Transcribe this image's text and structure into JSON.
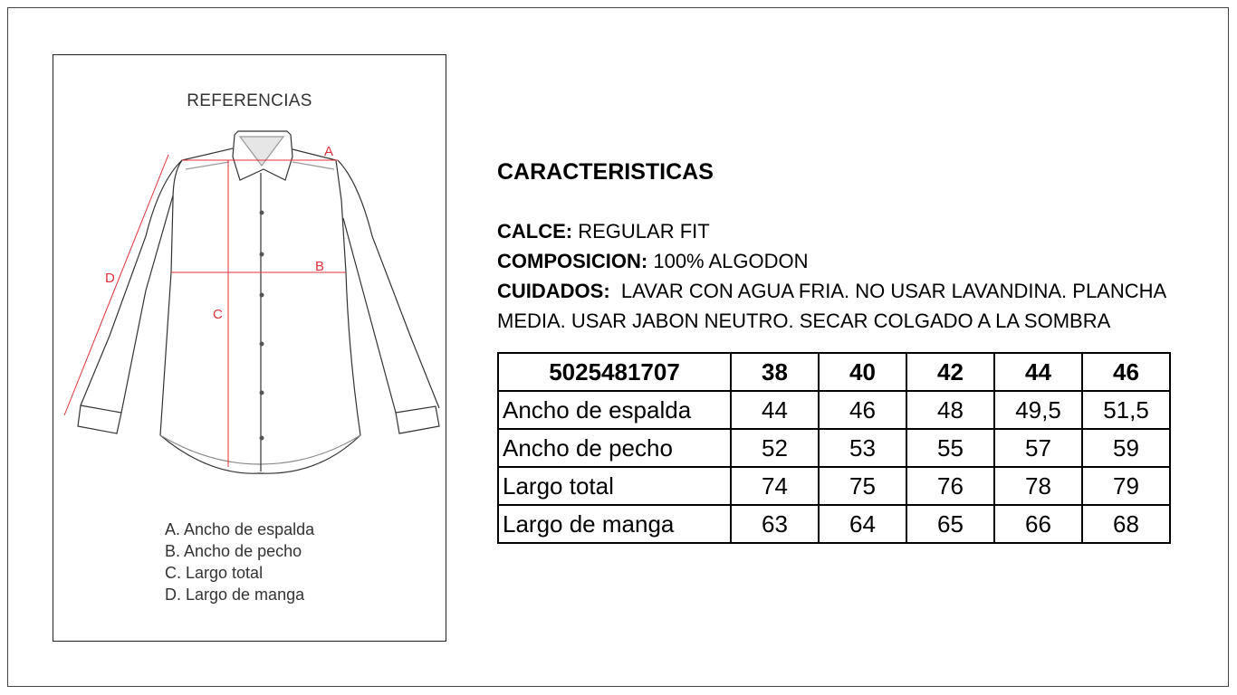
{
  "reference_panel": {
    "title": "REFERENCIAS",
    "markers": {
      "a": "A",
      "b": "B",
      "c": "C",
      "d": "D"
    },
    "legend": [
      "A. Ancho de espalda",
      "B. Ancho de pecho",
      "C. Largo total",
      "D. Largo de manga"
    ],
    "measure_line_color": "#e0303a"
  },
  "info": {
    "title": "CARACTERISTICAS",
    "calce_label": "CALCE:",
    "calce_value": " REGULAR FIT",
    "composicion_label": "COMPOSICION:",
    "composicion_value": " 100% ALGODON",
    "cuidados_label": "CUIDADOS:",
    "cuidados_value": "  LAVAR CON AGUA FRIA. NO USAR LAVANDINA. PLANCHA MEDIA. USAR JABON NEUTRO. SECAR COLGADO A LA SOMBRA"
  },
  "table": {
    "header": [
      "5025481707",
      "38",
      "40",
      "42",
      "44",
      "46"
    ],
    "rows": [
      [
        "Ancho de espalda",
        "44",
        "46",
        "48",
        "49,5",
        "51,5"
      ],
      [
        "Ancho de pecho",
        "52",
        "53",
        "55",
        "57",
        "59"
      ],
      [
        "Largo total",
        "74",
        "75",
        "76",
        "78",
        "79"
      ],
      [
        "Largo de manga",
        "63",
        "64",
        "65",
        "66",
        "68"
      ]
    ]
  }
}
